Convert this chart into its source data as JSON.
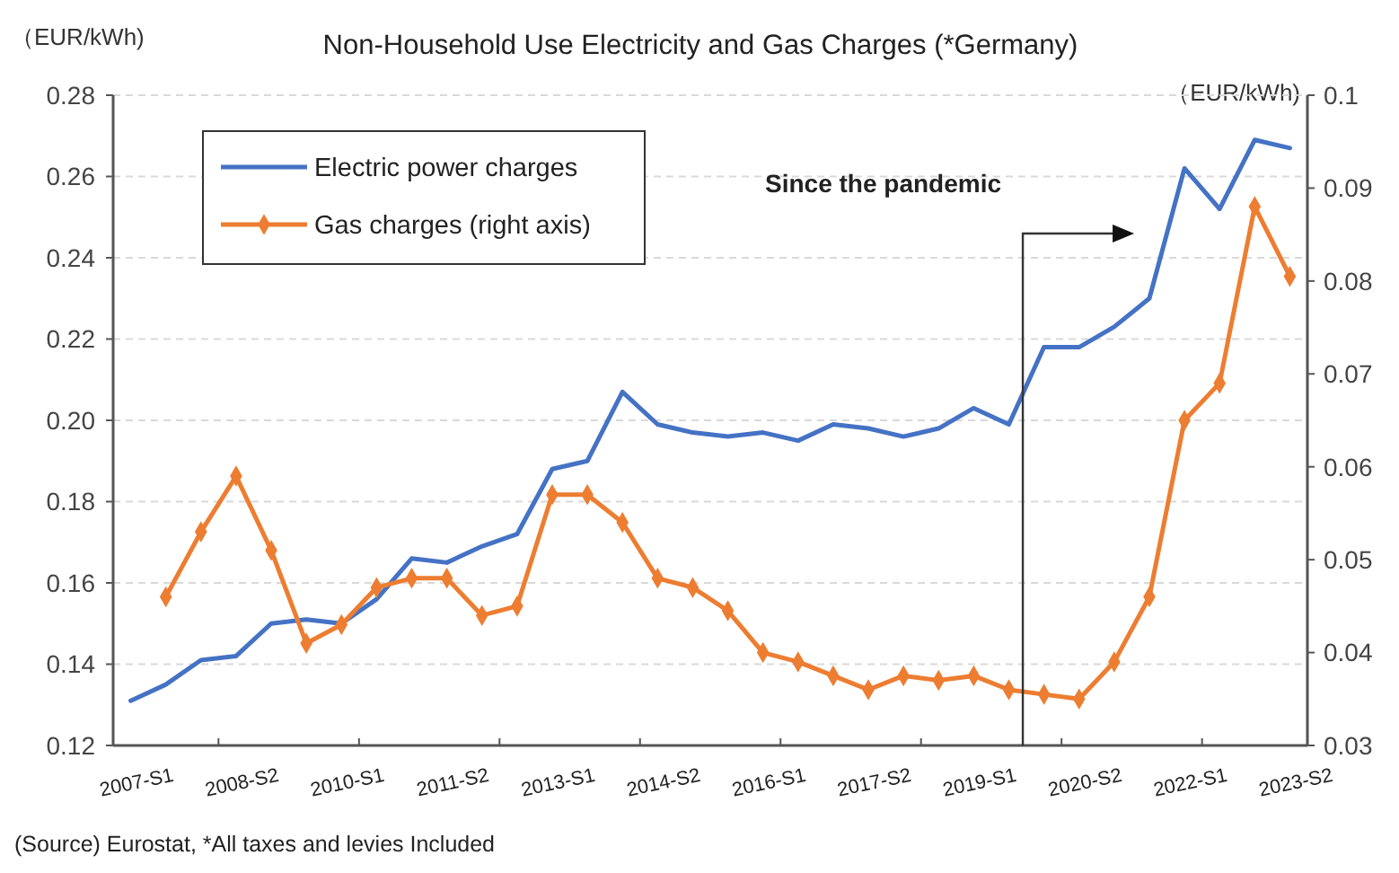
{
  "chart_data": {
    "type": "line",
    "title": "Non-Household Use Electricity and Gas Charges (*Germany)",
    "ylabel": "（EUR/kWh)",
    "y2label": "（EUR/kWh)",
    "categories": [
      "2007-S1",
      null,
      null,
      "2008-S2",
      null,
      null,
      "2010-S1",
      null,
      null,
      "2011-S2",
      null,
      null,
      "2013-S1",
      null,
      null,
      "2014-S2",
      null,
      null,
      "2016-S1",
      null,
      null,
      "2017-S2",
      null,
      null,
      "2019-S1",
      null,
      null,
      "2020-S2",
      null,
      null,
      "2022-S1",
      null,
      null,
      "2023-S2"
    ],
    "series": [
      {
        "name": "Electric power charges",
        "color": "#4472c4",
        "marker": "none",
        "values": [
          0.131,
          0.135,
          0.141,
          0.142,
          0.15,
          0.151,
          0.15,
          0.156,
          0.166,
          0.165,
          0.169,
          0.172,
          0.188,
          0.19,
          0.207,
          0.199,
          0.197,
          0.196,
          0.197,
          0.195,
          0.199,
          0.198,
          0.196,
          0.198,
          0.203,
          0.199,
          0.218,
          0.218,
          0.223,
          0.23,
          0.262,
          0.252,
          0.269,
          0.267
        ]
      },
      {
        "name": "Gas charges (right axis)",
        "color": "#ed7d31",
        "marker": "diamond",
        "axis": "y2",
        "values": [
          null,
          0.046,
          0.053,
          0.059,
          0.051,
          0.041,
          0.043,
          0.047,
          0.048,
          0.048,
          0.044,
          0.045,
          0.057,
          0.057,
          0.054,
          0.048,
          0.047,
          0.0445,
          0.04,
          0.039,
          0.0375,
          0.036,
          0.0375,
          0.037,
          0.0375,
          0.036,
          0.0355,
          0.035,
          0.039,
          0.046,
          0.065,
          0.069,
          0.088,
          0.0805
        ]
      }
    ],
    "ylim": [
      0.12,
      0.28
    ],
    "yticks": [
      0.12,
      0.14,
      0.16,
      0.18,
      {
        "value": 0.2,
        "label": "0.20"
      },
      0.22,
      0.24,
      0.26,
      0.28
    ],
    "y2lim": [
      0.03,
      0.1
    ],
    "y2ticks": [
      0.03,
      0.04,
      0.05,
      0.06,
      0.07,
      0.08,
      0.09,
      0.1
    ],
    "grid": "y",
    "legend": "top left",
    "line_style": "solid",
    "annotations": [
      "Since the pandemic",
      "(Source) Eurostat, *All taxes and levies Included"
    ]
  }
}
